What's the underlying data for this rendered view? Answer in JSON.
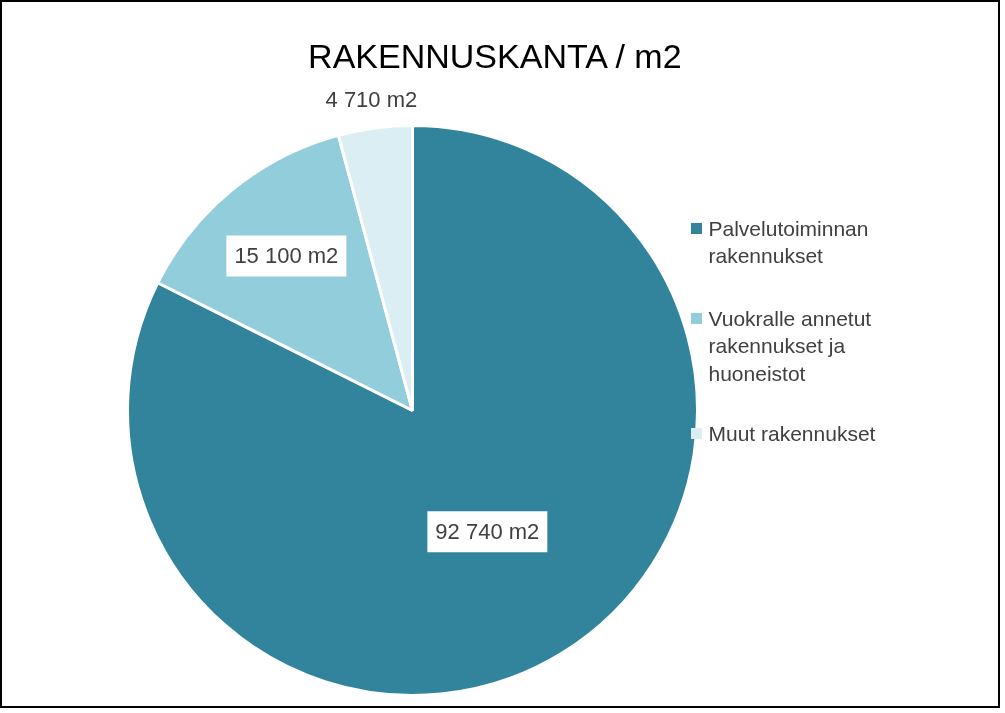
{
  "chart_data": {
    "type": "pie",
    "title": "RAKENNUSKANTA  / m2",
    "categories": [
      "Palvelutoiminnan rakennukset",
      "Vuokralle annetut rakennukset ja huoneistot",
      "Muut rakennukset"
    ],
    "values": [
      92740,
      15100,
      4710
    ],
    "colors": [
      "#31849b",
      "#92cddc",
      "#daeef3"
    ],
    "value_labels": [
      "92 740 m2",
      "15 100 m2",
      "4 710 m2"
    ],
    "legend": "right"
  }
}
